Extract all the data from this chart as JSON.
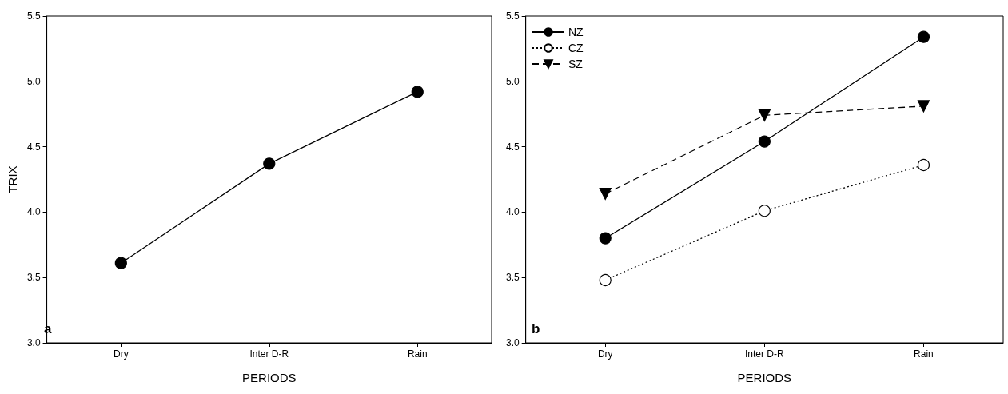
{
  "chart_data": [
    {
      "type": "line",
      "title": "a",
      "xlabel": "PERIODS",
      "ylabel": "TRIX",
      "categories": [
        "Dry",
        "Inter D-R",
        "Rain"
      ],
      "series": [
        {
          "color": "#000000",
          "values": [
            3.61,
            4.37,
            4.92
          ],
          "marker": "circle",
          "line_style": "solid"
        }
      ],
      "ylim": [
        3,
        5.5
      ],
      "yticks": [
        {
          "value": 3,
          "label": "3.0"
        },
        {
          "value": 3.5,
          "label": "3.5"
        },
        {
          "value": 4,
          "label": "4.0"
        },
        {
          "value": 4.5,
          "label": "4.5"
        },
        {
          "value": 5,
          "label": "5.0"
        },
        {
          "value": 5.5,
          "label": "5.5"
        }
      ],
      "grid": false,
      "legend": false
    },
    {
      "type": "line",
      "title": "b",
      "xlabel": "PERIODS",
      "categories": [
        "Dry",
        "Inter D-R",
        "Rain"
      ],
      "series": [
        {
          "name": "NZ",
          "color": "#000000",
          "values": [
            3.8,
            4.54,
            5.34
          ],
          "marker": "circle",
          "line_style": "solid"
        },
        {
          "name": "CZ",
          "color": "#000000",
          "values": [
            3.48,
            4.01,
            4.36
          ],
          "marker": "open-circle",
          "line_style": "dotted"
        },
        {
          "name": "SZ",
          "color": "#000000",
          "values": [
            4.14,
            4.74,
            4.81
          ],
          "marker": "triangle-down",
          "line_style": "dashed"
        }
      ],
      "ylim": [
        3,
        5.5
      ],
      "yticks": [
        {
          "value": 3,
          "label": "3.0"
        },
        {
          "value": 3.5,
          "label": "3.5"
        },
        {
          "value": 4,
          "label": "4.0"
        },
        {
          "value": 4.5,
          "label": "4.5"
        },
        {
          "value": 5,
          "label": "5.0"
        },
        {
          "value": 5.5,
          "label": "5.5"
        }
      ],
      "grid": false,
      "legend": "top left"
    }
  ]
}
